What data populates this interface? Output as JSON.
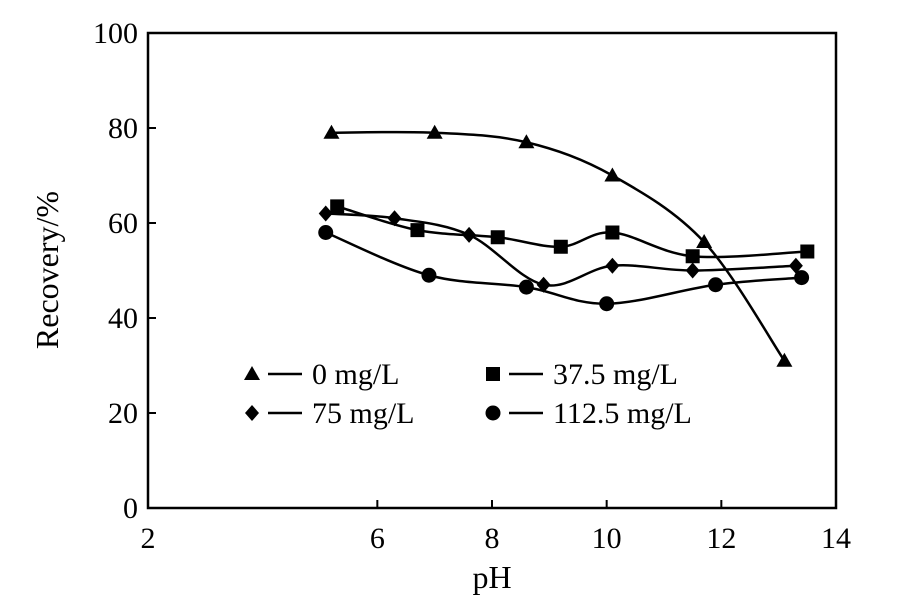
{
  "chart_data": {
    "type": "line",
    "title": "",
    "xlabel": "pH",
    "ylabel": "Recovery/%",
    "xlim": [
      2,
      14
    ],
    "ylim": [
      0,
      100
    ],
    "xticks": [
      2,
      6,
      8,
      10,
      12,
      14
    ],
    "yticks": [
      0,
      20,
      40,
      60,
      80,
      100
    ],
    "grid": false,
    "legend_position": "lower-center, two columns",
    "series": [
      {
        "name": "0 mg/L",
        "marker": "triangle",
        "x": [
          5.2,
          7.0,
          8.6,
          10.1,
          11.7,
          13.1
        ],
        "y": [
          79,
          79,
          77,
          70,
          56,
          31
        ]
      },
      {
        "name": "37.5 mg/L",
        "marker": "square",
        "x": [
          5.3,
          6.7,
          8.1,
          9.2,
          10.1,
          11.5,
          13.5
        ],
        "y": [
          63.5,
          58.5,
          57,
          55,
          58,
          53,
          54
        ]
      },
      {
        "name": "75 mg/L",
        "marker": "diamond",
        "x": [
          5.1,
          6.3,
          7.6,
          8.9,
          10.1,
          11.5,
          13.3
        ],
        "y": [
          62,
          61,
          57.5,
          47,
          51,
          50,
          51
        ]
      },
      {
        "name": "112.5 mg/L",
        "marker": "circle",
        "x": [
          5.1,
          6.9,
          8.6,
          10.0,
          11.9,
          13.4
        ],
        "y": [
          58,
          49,
          46.5,
          43,
          47,
          48.5
        ]
      }
    ]
  }
}
